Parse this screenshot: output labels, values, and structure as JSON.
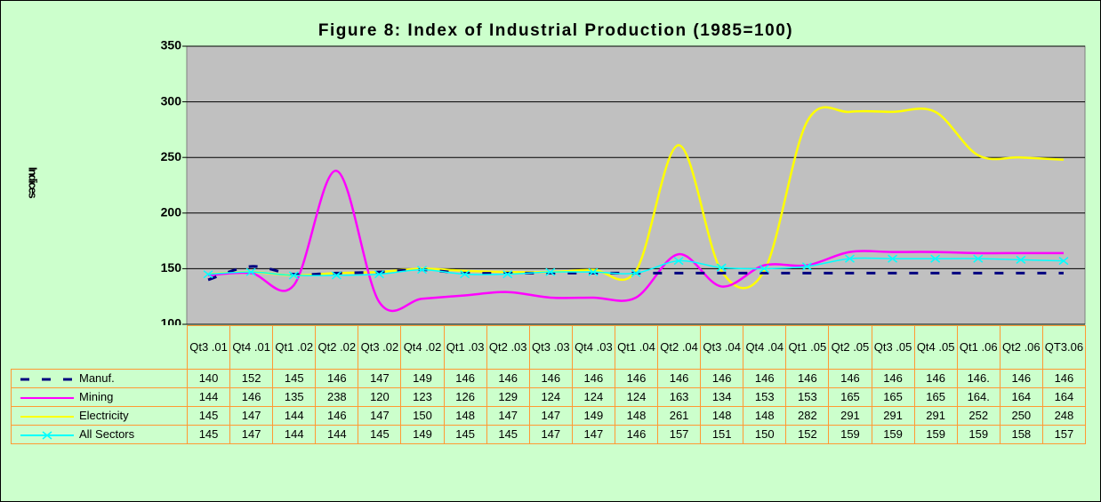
{
  "chart_data": {
    "type": "line",
    "title": "Figure 8: Index of Industrial Production (1985=100)",
    "y_label": "Indices",
    "categories": [
      "Qt3 .01",
      "Qt4 .01",
      "Qt1 .02",
      "Qt2 .02",
      "Qt3 .02",
      "Qt4 .02",
      "Qt1 .03",
      "Qt2 .03",
      "Qt3 .03",
      "Qt4 .03",
      "Qt1 .04",
      "Qt2 .04",
      "Qt3 .04",
      "Qt4 .04",
      "Qt1 .05",
      "Qt2 .05",
      "Qt3 .05",
      "Qt4 .05",
      "Qt1 .06",
      "Qt2 .06",
      "QT3.06"
    ],
    "ylim": [
      100,
      350
    ],
    "yticks": [
      100,
      150,
      200,
      250,
      300,
      350
    ],
    "grid": true,
    "series": [
      {
        "name": "Manuf.",
        "color": "#000080",
        "dash": true,
        "values": [
          140,
          152,
          145,
          146,
          147,
          149,
          146,
          146,
          146,
          146,
          146,
          146,
          146,
          146,
          146,
          146,
          146,
          146,
          146,
          146,
          146
        ],
        "value_labels": [
          "140",
          "152",
          "145",
          "146",
          "147",
          "149",
          "146",
          "146",
          "146",
          "146",
          "146",
          "146",
          "146",
          "146",
          "146",
          "146",
          "146",
          "146",
          "146.",
          "146",
          "146"
        ]
      },
      {
        "name": "Mining",
        "color": "#ff00ff",
        "values": [
          144,
          146,
          135,
          238,
          120,
          123,
          126,
          129,
          124,
          124,
          124,
          163,
          134,
          153,
          153,
          165,
          165,
          165,
          164,
          164,
          164
        ],
        "value_labels": [
          "144",
          "146",
          "135",
          "238",
          "120",
          "123",
          "126",
          "129",
          "124",
          "124",
          "124",
          "163",
          "134",
          "153",
          "153",
          "165",
          "165",
          "165",
          "164.",
          "164",
          "164"
        ]
      },
      {
        "name": "Electricity",
        "color": "#ffff00",
        "values": [
          145,
          147,
          144,
          146,
          147,
          150,
          148,
          147,
          147,
          149,
          148,
          261,
          148,
          148,
          282,
          291,
          291,
          291,
          252,
          250,
          248
        ]
      },
      {
        "name": "All Sectors",
        "color": "#00ffff",
        "marker": "x",
        "values": [
          145,
          147,
          144,
          144,
          145,
          149,
          145,
          145,
          147,
          147,
          146,
          157,
          151,
          150,
          152,
          159,
          159,
          159,
          159,
          158,
          157
        ]
      }
    ]
  }
}
